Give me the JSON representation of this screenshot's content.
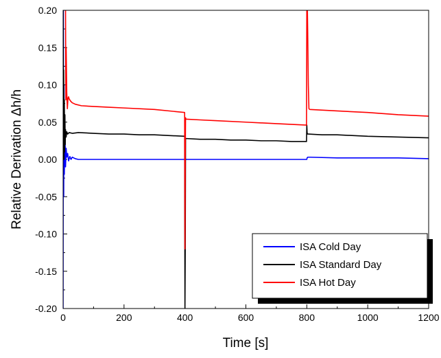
{
  "chart_data": {
    "type": "line",
    "title": "",
    "xlabel": "Time [s]",
    "ylabel": "Relative Derivation Δh/h",
    "xlim": [
      0,
      1200
    ],
    "ylim": [
      -0.2,
      0.2
    ],
    "x_ticks": [
      0,
      200,
      400,
      600,
      800,
      1000,
      1200
    ],
    "y_ticks": [
      -0.2,
      -0.15,
      -0.1,
      -0.05,
      0.0,
      0.05,
      0.1,
      0.15,
      0.2
    ],
    "x_tick_labels": [
      "0",
      "200",
      "400",
      "600",
      "800",
      "1000",
      "1200"
    ],
    "y_tick_labels": [
      "-0.20",
      "-0.15",
      "-0.10",
      "-0.05",
      "0.00",
      "0.05",
      "0.10",
      "0.15",
      "0.20"
    ],
    "grid": false,
    "legend_position": "bottom-right",
    "series": [
      {
        "name": "ISA Cold Day",
        "color": "#0000ff",
        "x": [
          0,
          1,
          2,
          3,
          4,
          6,
          8,
          10,
          12,
          15,
          18,
          22,
          26,
          30,
          40,
          50,
          60,
          100,
          200,
          300,
          400,
          500,
          600,
          700,
          799,
          800,
          801,
          803,
          806,
          810,
          900,
          1000,
          1100,
          1200
        ],
        "y": [
          -0.2,
          0.2,
          -0.05,
          0.1,
          -0.02,
          0.04,
          -0.01,
          0.015,
          0.003,
          0.008,
          -0.002,
          0.004,
          0.0,
          0.003,
          0.001,
          0.0,
          0.0,
          0.0,
          0.0,
          0.0,
          0.0,
          0.0,
          0.0,
          0.0,
          0.0,
          0.0,
          0.002,
          0.003,
          0.003,
          0.003,
          0.002,
          0.002,
          0.002,
          0.001
        ]
      },
      {
        "name": "ISA Standard Day",
        "color": "#000000",
        "x": [
          0,
          1,
          2,
          3,
          4,
          5,
          6,
          7,
          8,
          10,
          12,
          15,
          20,
          30,
          50,
          100,
          150,
          200,
          250,
          300,
          350,
          399,
          400,
          401,
          402,
          405,
          450,
          500,
          550,
          600,
          650,
          700,
          750,
          799,
          800,
          801,
          802,
          805,
          850,
          900,
          1000,
          1100,
          1200
        ],
        "y": [
          0.2,
          0.05,
          0.12,
          0.0,
          0.08,
          0.01,
          0.06,
          0.02,
          0.04,
          0.03,
          0.037,
          0.034,
          0.036,
          0.035,
          0.036,
          0.035,
          0.034,
          0.034,
          0.033,
          0.033,
          0.032,
          0.031,
          -0.2,
          -0.12,
          0.028,
          0.028,
          0.027,
          0.027,
          0.026,
          0.026,
          0.025,
          0.025,
          0.024,
          0.024,
          0.046,
          0.036,
          0.034,
          0.034,
          0.033,
          0.033,
          0.031,
          0.03,
          0.029
        ]
      },
      {
        "name": "ISA Hot Day",
        "color": "#ff0000",
        "x": [
          8,
          9,
          10,
          12,
          14,
          16,
          18,
          20,
          25,
          30,
          40,
          60,
          100,
          150,
          200,
          300,
          399,
          400,
          401,
          402,
          403,
          405,
          450,
          500,
          600,
          700,
          799,
          800,
          801,
          802,
          803,
          805,
          807,
          810,
          900,
          1000,
          1100,
          1200
        ],
        "y": [
          0.2,
          0.08,
          0.15,
          0.09,
          0.068,
          0.082,
          0.084,
          0.081,
          0.078,
          0.076,
          0.074,
          0.072,
          0.071,
          0.07,
          0.069,
          0.067,
          0.063,
          -0.12,
          0.0,
          0.056,
          0.054,
          0.054,
          0.053,
          0.052,
          0.05,
          0.048,
          0.046,
          0.2,
          0.2,
          0.2,
          0.17,
          0.1,
          0.068,
          0.067,
          0.065,
          0.063,
          0.06,
          0.058
        ]
      }
    ]
  }
}
